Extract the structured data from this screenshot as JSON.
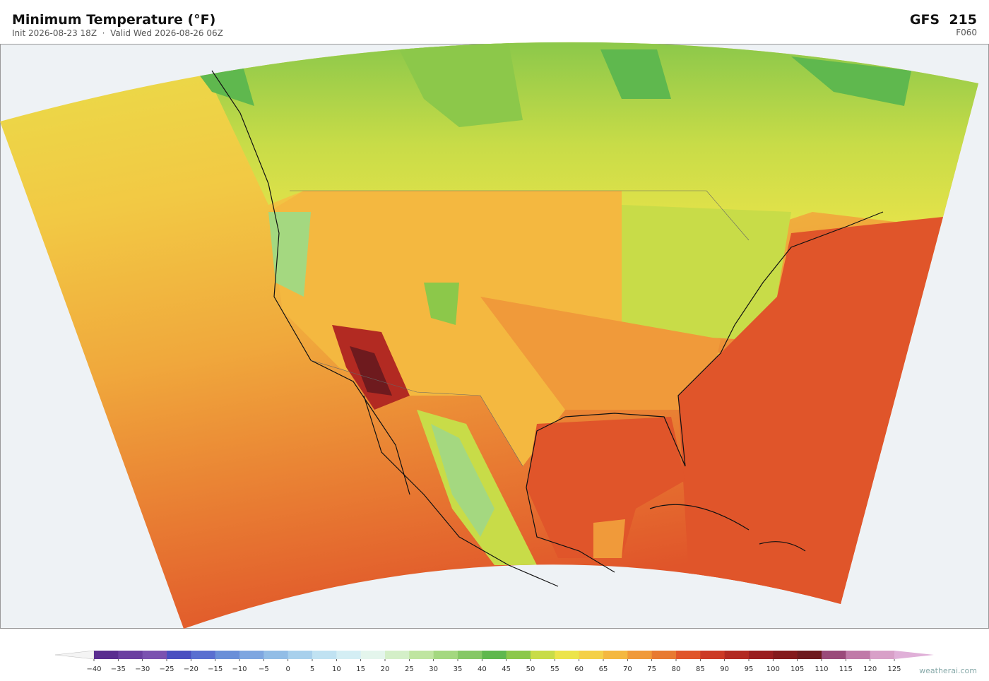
{
  "header": {
    "title": "Minimum Temperature  (°F)",
    "subtitle": "Init 2026-08-23 18Z  ·  Valid Wed 2026-08-26 06Z",
    "model": "GFS  215",
    "forecast_hour": "F060"
  },
  "colorbar": {
    "ticks": [
      {
        "value": -40,
        "label": "−40"
      },
      {
        "value": -35,
        "label": "−35"
      },
      {
        "value": -30,
        "label": "−30"
      },
      {
        "value": -25,
        "label": "−25"
      },
      {
        "value": -20,
        "label": "−20"
      },
      {
        "value": -15,
        "label": "−15"
      },
      {
        "value": -10,
        "label": "−10"
      },
      {
        "value": -5,
        "label": "−5"
      },
      0,
      5,
      10,
      15,
      20,
      25,
      30,
      35,
      40,
      45,
      50,
      55,
      60,
      65,
      70,
      75,
      80,
      85,
      90,
      95,
      100,
      105,
      110,
      115,
      120,
      125
    ],
    "colors": [
      "#5a2d8f",
      "#6b3fa0",
      "#7b52b0",
      "#4a4fc0",
      "#5a6fd0",
      "#6a8fd8",
      "#7ea6e0",
      "#92bde6",
      "#a8d0ec",
      "#c0e2f2",
      "#d4eef4",
      "#e4f5ec",
      "#d4efc8",
      "#bfe5a0",
      "#a4d880",
      "#86c866",
      "#5fb84e",
      "#8cc84a",
      "#c8dc48",
      "#ece44a",
      "#f4d048",
      "#f4b840",
      "#f09a3a",
      "#e87a32",
      "#e0552a",
      "#cc3a26",
      "#b22a22",
      "#9a1e20",
      "#841a1c",
      "#6e1a1e",
      "#9a4a7a",
      "#c07aa8",
      "#d8a0c8"
    ],
    "under_color": "#f4f4f4",
    "over_color": "#e0b0d8"
  },
  "credit": "weatherai.com"
}
